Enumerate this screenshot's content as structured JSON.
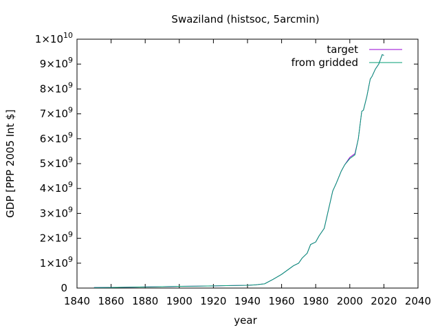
{
  "chart_data": {
    "type": "line",
    "title": "Swaziland (histsoc, 5arcmin)",
    "xlabel": "year",
    "ylabel": "GDP [PPP 2005 Int $]",
    "xlim": [
      1840,
      2040
    ],
    "ylim": [
      0,
      10000000000
    ],
    "grid": false,
    "legend_position": "top-right",
    "x_ticks": [
      1840,
      1860,
      1880,
      1900,
      1920,
      1940,
      1960,
      1980,
      2000,
      2020,
      2040
    ],
    "x_tick_labels": [
      "1840",
      "1860",
      "1880",
      "1900",
      "1920",
      "1940",
      "1960",
      "1980",
      "2000",
      "2020",
      "2040"
    ],
    "y_ticks": [
      {
        "value": 0,
        "mantissa": "0",
        "exponent": ""
      },
      {
        "value": 1000000000,
        "mantissa": "1×10",
        "exponent": "9"
      },
      {
        "value": 2000000000,
        "mantissa": "2×10",
        "exponent": "9"
      },
      {
        "value": 3000000000,
        "mantissa": "3×10",
        "exponent": "9"
      },
      {
        "value": 4000000000,
        "mantissa": "4×10",
        "exponent": "9"
      },
      {
        "value": 5000000000,
        "mantissa": "5×10",
        "exponent": "9"
      },
      {
        "value": 6000000000,
        "mantissa": "6×10",
        "exponent": "9"
      },
      {
        "value": 7000000000,
        "mantissa": "7×10",
        "exponent": "9"
      },
      {
        "value": 8000000000,
        "mantissa": "8×10",
        "exponent": "9"
      },
      {
        "value": 9000000000,
        "mantissa": "9×10",
        "exponent": "9"
      },
      {
        "value": 10000000000,
        "mantissa": "1×10",
        "exponent": "10"
      }
    ],
    "series": [
      {
        "name": "target",
        "color": "#9400d3",
        "x": [
          1850,
          1860,
          1870,
          1880,
          1890,
          1900,
          1910,
          1920,
          1930,
          1940,
          1945,
          1950,
          1955,
          1960,
          1965,
          1967,
          1970,
          1972,
          1975,
          1977,
          1980,
          1982,
          1985,
          1987,
          1990,
          1992,
          1995,
          1997,
          2000,
          2003,
          2005,
          2007,
          2008,
          2010,
          2012,
          2013,
          2015,
          2017,
          2019,
          2020
        ],
        "y": [
          20000000,
          25000000,
          35000000,
          45000000,
          55000000,
          70000000,
          75000000,
          85000000,
          100000000,
          110000000,
          130000000,
          170000000,
          350000000,
          550000000,
          800000000,
          900000000,
          1000000000,
          1200000000,
          1400000000,
          1750000000,
          1850000000,
          2100000000,
          2400000000,
          3000000000,
          3900000000,
          4200000000,
          4700000000,
          4950000000,
          5250000000,
          5400000000,
          6000000000,
          7100000000,
          7150000000,
          7700000000,
          8400000000,
          8500000000,
          8800000000,
          9000000000,
          9380000000,
          9350000000
        ]
      },
      {
        "name": "from gridded",
        "color": "#009e73",
        "x": [
          1850,
          1860,
          1870,
          1880,
          1890,
          1900,
          1910,
          1920,
          1930,
          1940,
          1945,
          1950,
          1955,
          1960,
          1965,
          1967,
          1970,
          1972,
          1975,
          1977,
          1980,
          1982,
          1985,
          1987,
          1990,
          1992,
          1995,
          1997,
          2000,
          2003,
          2005,
          2007,
          2008,
          2010,
          2012,
          2013,
          2015,
          2017,
          2019,
          2020
        ],
        "y": [
          20000000,
          25000000,
          35000000,
          45000000,
          55000000,
          70000000,
          75000000,
          85000000,
          100000000,
          110000000,
          130000000,
          170000000,
          350000000,
          550000000,
          800000000,
          900000000,
          1000000000,
          1200000000,
          1400000000,
          1750000000,
          1850000000,
          2100000000,
          2400000000,
          3000000000,
          3900000000,
          4200000000,
          4700000000,
          4950000000,
          5200000000,
          5350000000,
          6000000000,
          7100000000,
          7150000000,
          7700000000,
          8400000000,
          8500000000,
          8800000000,
          9000000000,
          9380000000,
          9350000000
        ]
      }
    ]
  }
}
